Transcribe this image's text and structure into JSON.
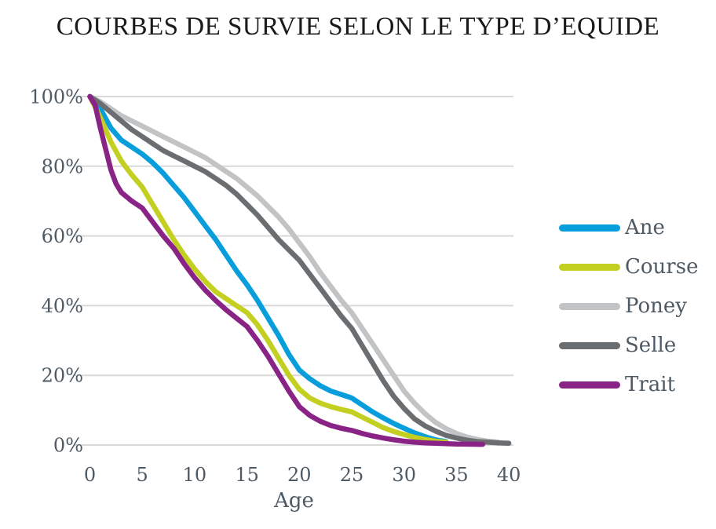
{
  "chart_data": {
    "type": "line",
    "title": "COURBES DE SURVIE SELON LE TYPE D’EQUIDE",
    "xlabel": "Age",
    "ylabel": "",
    "xlim": [
      0,
      40
    ],
    "ylim": [
      0,
      100
    ],
    "grid": "horizontal",
    "legend_position": "right",
    "x_ticks": [
      0,
      5,
      10,
      15,
      20,
      25,
      30,
      35,
      40
    ],
    "y_ticks": [
      {
        "value": 100,
        "label": "100%"
      },
      {
        "value": 80,
        "label": "80%"
      },
      {
        "value": 60,
        "label": "60%"
      },
      {
        "value": 40,
        "label": "40%"
      },
      {
        "value": 20,
        "label": "20%"
      },
      {
        "value": 0,
        "label": "0%"
      }
    ],
    "y_unit": "percent survival",
    "x_unit": "age in years",
    "series": [
      {
        "name": "Ane",
        "color": "#089EDC",
        "points": [
          [
            0,
            100
          ],
          [
            1,
            96.5
          ],
          [
            2,
            91
          ],
          [
            3,
            87.5
          ],
          [
            4,
            85.5
          ],
          [
            5,
            83.5
          ],
          [
            6,
            81
          ],
          [
            7,
            78
          ],
          [
            8,
            74.5
          ],
          [
            9,
            71
          ],
          [
            10,
            67
          ],
          [
            11,
            63
          ],
          [
            12,
            59
          ],
          [
            13,
            54.5
          ],
          [
            14,
            50
          ],
          [
            15,
            46
          ],
          [
            16,
            41.5
          ],
          [
            17,
            36.5
          ],
          [
            18,
            31.5
          ],
          [
            19,
            26
          ],
          [
            20,
            21.5
          ],
          [
            21,
            19
          ],
          [
            22,
            17
          ],
          [
            23,
            15.5
          ],
          [
            24,
            14.5
          ],
          [
            25,
            13.5
          ],
          [
            26,
            11.5
          ],
          [
            27,
            9.5
          ],
          [
            28,
            7.8
          ],
          [
            29,
            6.2
          ],
          [
            30,
            4.8
          ],
          [
            31,
            3.5
          ],
          [
            32,
            2.4
          ],
          [
            33,
            1.5
          ],
          [
            34,
            1
          ]
        ]
      },
      {
        "name": "Course",
        "color": "#C3D022",
        "points": [
          [
            0,
            100
          ],
          [
            1,
            94
          ],
          [
            2,
            87
          ],
          [
            3,
            81.5
          ],
          [
            4,
            77.5
          ],
          [
            5,
            74
          ],
          [
            6,
            69
          ],
          [
            7,
            64
          ],
          [
            8,
            59
          ],
          [
            9,
            54.5
          ],
          [
            10,
            50.5
          ],
          [
            11,
            47
          ],
          [
            12,
            44
          ],
          [
            13,
            42
          ],
          [
            14,
            40
          ],
          [
            15,
            38
          ],
          [
            16,
            34.5
          ],
          [
            17,
            30
          ],
          [
            18,
            25
          ],
          [
            19,
            20
          ],
          [
            20,
            16
          ],
          [
            21,
            13.5
          ],
          [
            22,
            12
          ],
          [
            23,
            11
          ],
          [
            24,
            10.2
          ],
          [
            25,
            9.5
          ],
          [
            26,
            8
          ],
          [
            27,
            6.5
          ],
          [
            28,
            5
          ],
          [
            29,
            3.9
          ],
          [
            30,
            3
          ],
          [
            31,
            2.2
          ],
          [
            32,
            1.6
          ],
          [
            33,
            1.1
          ],
          [
            34,
            0.8
          ]
        ]
      },
      {
        "name": "Poney",
        "color": "#C2C3C5",
        "points": [
          [
            0,
            100
          ],
          [
            1,
            98.5
          ],
          [
            2,
            96.5
          ],
          [
            3,
            94.5
          ],
          [
            4,
            93
          ],
          [
            5,
            91.5
          ],
          [
            6,
            90
          ],
          [
            7,
            88.5
          ],
          [
            8,
            87
          ],
          [
            9,
            85.5
          ],
          [
            10,
            84
          ],
          [
            11,
            82.5
          ],
          [
            12,
            80.5
          ],
          [
            13,
            78.5
          ],
          [
            14,
            76.5
          ],
          [
            15,
            74
          ],
          [
            16,
            71.5
          ],
          [
            17,
            68.5
          ],
          [
            18,
            65.5
          ],
          [
            19,
            62
          ],
          [
            20,
            58
          ],
          [
            21,
            54
          ],
          [
            22,
            49.5
          ],
          [
            23,
            45.5
          ],
          [
            24,
            41.5
          ],
          [
            25,
            38
          ],
          [
            26,
            33.5
          ],
          [
            27,
            29
          ],
          [
            28,
            24.5
          ],
          [
            29,
            20
          ],
          [
            30,
            15.5
          ],
          [
            31,
            12
          ],
          [
            32,
            9
          ],
          [
            33,
            6.5
          ],
          [
            34,
            4.7
          ],
          [
            35,
            3.3
          ],
          [
            36,
            2.3
          ],
          [
            37,
            1.6
          ],
          [
            38,
            1.1
          ],
          [
            39,
            0.8
          ]
        ]
      },
      {
        "name": "Selle",
        "color": "#6B6E70",
        "points": [
          [
            0,
            100
          ],
          [
            1,
            98
          ],
          [
            2,
            95.5
          ],
          [
            3,
            93
          ],
          [
            4,
            90.5
          ],
          [
            5,
            88.5
          ],
          [
            6,
            86.5
          ],
          [
            7,
            84.5
          ],
          [
            8,
            83
          ],
          [
            9,
            81.5
          ],
          [
            10,
            80
          ],
          [
            11,
            78.5
          ],
          [
            12,
            76.5
          ],
          [
            13,
            74.5
          ],
          [
            14,
            72
          ],
          [
            15,
            69
          ],
          [
            16,
            66
          ],
          [
            17,
            62.5
          ],
          [
            18,
            59
          ],
          [
            19,
            56
          ],
          [
            20,
            53
          ],
          [
            21,
            49
          ],
          [
            22,
            45
          ],
          [
            23,
            41
          ],
          [
            24,
            37
          ],
          [
            25,
            33.5
          ],
          [
            26,
            28.5
          ],
          [
            27,
            23.5
          ],
          [
            28,
            18.5
          ],
          [
            29,
            14
          ],
          [
            30,
            10.5
          ],
          [
            31,
            7.5
          ],
          [
            32,
            5.5
          ],
          [
            33,
            4
          ],
          [
            34,
            2.8
          ],
          [
            35,
            2
          ],
          [
            36,
            1.4
          ],
          [
            37,
            1
          ],
          [
            38,
            0.8
          ],
          [
            39,
            0.6
          ],
          [
            40,
            0.5
          ]
        ]
      },
      {
        "name": "Trait",
        "color": "#8A2386",
        "points": [
          [
            0,
            100
          ],
          [
            0.5,
            97.5
          ],
          [
            1,
            91
          ],
          [
            1.5,
            85
          ],
          [
            2,
            79
          ],
          [
            2.5,
            75
          ],
          [
            3,
            72.5
          ],
          [
            4,
            70
          ],
          [
            5,
            68
          ],
          [
            6,
            64
          ],
          [
            7,
            60
          ],
          [
            8,
            56.5
          ],
          [
            9,
            52
          ],
          [
            10,
            48
          ],
          [
            11,
            44.5
          ],
          [
            12,
            41.5
          ],
          [
            13,
            38.8
          ],
          [
            14,
            36.4
          ],
          [
            15,
            34
          ],
          [
            16,
            30
          ],
          [
            17,
            25.5
          ],
          [
            18,
            20.5
          ],
          [
            19,
            15.5
          ],
          [
            20,
            11
          ],
          [
            21,
            8.5
          ],
          [
            22,
            6.8
          ],
          [
            23,
            5.6
          ],
          [
            24,
            4.8
          ],
          [
            25,
            4.2
          ],
          [
            26,
            3.3
          ],
          [
            27,
            2.6
          ],
          [
            28,
            2
          ],
          [
            29,
            1.5
          ],
          [
            30,
            1.1
          ],
          [
            31,
            0.8
          ],
          [
            32,
            0.6
          ],
          [
            33,
            0.5
          ],
          [
            34,
            0.4
          ],
          [
            35,
            0.3
          ],
          [
            36,
            0.25
          ],
          [
            37,
            0.2
          ],
          [
            37.5,
            0.2
          ]
        ]
      }
    ]
  },
  "colors": {
    "background": "#FFFFFF",
    "gridline": "#D9D9D9",
    "tick_text": "#4E5A64",
    "title_text": "#1A1A1A"
  }
}
